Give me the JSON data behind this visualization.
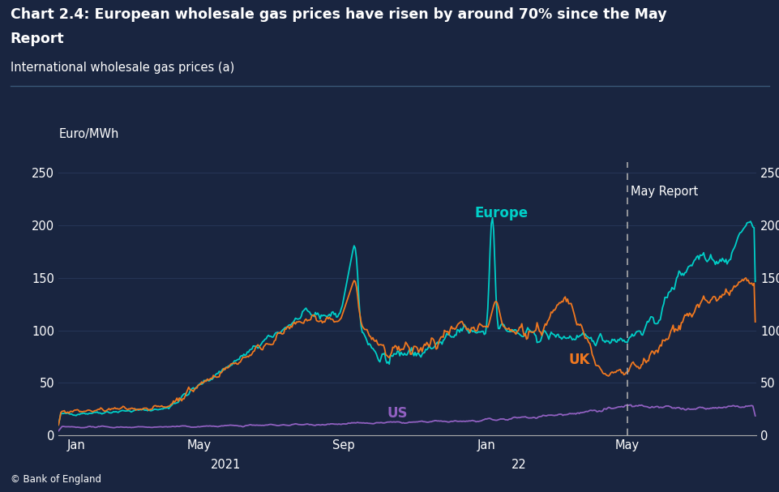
{
  "title_line1": "Chart 2.4: European wholesale gas prices have risen by around 70% since the May",
  "title_line2": "Report",
  "subtitle": "International wholesale gas prices (a)",
  "ylabel_left": "Euro/MWh",
  "background_color": "#192540",
  "plot_bg_color": "#192540",
  "text_color": "#ffffff",
  "grid_color": "#253555",
  "europe_color": "#00cfc8",
  "uk_color": "#f07820",
  "us_color": "#9060c0",
  "may_report_line_color": "#aaaaaa",
  "ylim": [
    0,
    260
  ],
  "yticks": [
    0,
    50,
    100,
    150,
    200,
    250
  ],
  "footer": "© Bank of England",
  "europe_label": "Europe",
  "uk_label": "UK",
  "us_label": "US",
  "may_report_label": "May Report"
}
